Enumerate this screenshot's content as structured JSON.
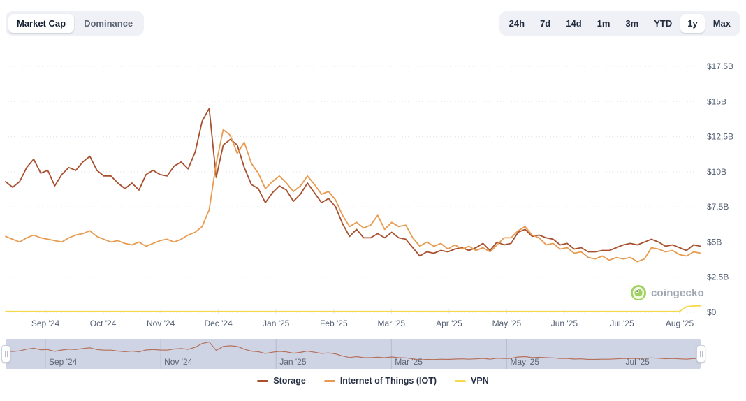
{
  "header": {
    "metric_tabs": [
      {
        "label": "Market Cap",
        "active": true
      },
      {
        "label": "Dominance",
        "active": false
      }
    ],
    "range_tabs": [
      {
        "label": "24h",
        "active": false
      },
      {
        "label": "7d",
        "active": false
      },
      {
        "label": "14d",
        "active": false
      },
      {
        "label": "1m",
        "active": false
      },
      {
        "label": "3m",
        "active": false
      },
      {
        "label": "YTD",
        "active": false
      },
      {
        "label": "1y",
        "active": true
      },
      {
        "label": "Max",
        "active": false
      }
    ]
  },
  "watermark": {
    "text": "coingecko",
    "icon": "gecko-logo",
    "icon_color": "#9ed160"
  },
  "navigator": {
    "labels": [
      "Sep '24",
      "Nov '24",
      "Jan '25",
      "Mar '25",
      "May '25",
      "Jul '25"
    ],
    "series_shown": "Storage",
    "line_color": "#b5705a",
    "background": "#ced4e4"
  },
  "legend": {
    "items": [
      {
        "label": "Storage",
        "color": "#a84f2d"
      },
      {
        "label": "Internet of Things (IOT)",
        "color": "#e89a4f"
      },
      {
        "label": "VPN",
        "color": "#f6d84b"
      }
    ]
  },
  "chart_data": {
    "type": "line",
    "title": "Market Cap",
    "unit": "USD billions",
    "sampling": "100 evenly spaced points across the 1y range (Aug 2024 - Aug 2025)",
    "grid": "horizontal-dotted",
    "legend_position": "bottom",
    "x_axis": {
      "tick_labels": [
        "Sep '24",
        "Oct '24",
        "Nov '24",
        "Dec '24",
        "Jan '25",
        "Feb '25",
        "Mar '25",
        "Apr '25",
        "May '25",
        "Jun '25",
        "Jul '25",
        "Aug '25"
      ]
    },
    "y_axis": {
      "ylim": [
        0,
        17.5
      ],
      "tick_values": [
        17.5,
        15,
        12.5,
        10,
        7.5,
        5,
        2.5,
        0
      ],
      "tick_labels": [
        "$17.5B",
        "$15B",
        "$12.5B",
        "$10B",
        "$7.5B",
        "$5B",
        "$2.5B",
        "$0"
      ]
    },
    "series": [
      {
        "name": "Storage",
        "color": "#a84f2d",
        "values": [
          9.3,
          8.9,
          9.3,
          10.3,
          10.9,
          9.9,
          10.1,
          9.0,
          9.8,
          10.3,
          10.1,
          10.7,
          11.1,
          10.1,
          9.7,
          9.7,
          9.2,
          8.8,
          9.2,
          8.7,
          9.8,
          10.1,
          9.8,
          9.7,
          10.4,
          10.7,
          10.2,
          11.4,
          13.6,
          14.5,
          9.6,
          11.9,
          12.3,
          11.9,
          10.3,
          9.1,
          8.8,
          7.8,
          8.5,
          9.0,
          8.7,
          7.9,
          8.4,
          9.2,
          8.5,
          7.8,
          8.1,
          7.5,
          6.3,
          5.4,
          5.9,
          5.3,
          5.3,
          5.6,
          5.3,
          5.7,
          5.3,
          5.2,
          4.6,
          4.0,
          4.3,
          4.2,
          4.4,
          4.3,
          4.5,
          4.6,
          4.4,
          4.6,
          4.9,
          4.4,
          5.0,
          4.8,
          4.9,
          5.7,
          5.9,
          5.4,
          5.5,
          5.3,
          5.2,
          4.8,
          4.9,
          4.5,
          4.6,
          4.3,
          4.3,
          4.4,
          4.4,
          4.6,
          4.8,
          4.9,
          4.8,
          5.0,
          5.2,
          5.0,
          4.7,
          4.8,
          4.6,
          4.4,
          4.8,
          4.7
        ]
      },
      {
        "name": "Internet of Things (IOT)",
        "color": "#e89a4f",
        "values": [
          5.4,
          5.2,
          5.0,
          5.3,
          5.5,
          5.3,
          5.2,
          5.1,
          5.0,
          5.3,
          5.5,
          5.6,
          5.8,
          5.4,
          5.2,
          5.0,
          5.1,
          4.9,
          4.8,
          5.0,
          4.7,
          4.9,
          5.1,
          5.2,
          5.0,
          5.2,
          5.5,
          5.7,
          6.1,
          7.3,
          10.6,
          13.0,
          12.6,
          11.3,
          12.1,
          10.6,
          9.9,
          8.8,
          9.3,
          9.7,
          9.2,
          8.6,
          9.0,
          9.7,
          9.1,
          8.4,
          8.6,
          8.0,
          6.9,
          6.1,
          6.4,
          6.0,
          6.2,
          6.9,
          5.9,
          6.4,
          6.1,
          6.2,
          5.3,
          4.7,
          5.0,
          4.7,
          4.9,
          4.5,
          4.8,
          4.5,
          4.7,
          4.4,
          4.6,
          4.3,
          4.8,
          5.3,
          5.3,
          5.8,
          6.1,
          5.5,
          5.3,
          4.8,
          4.9,
          4.5,
          4.6,
          4.2,
          4.3,
          3.9,
          3.8,
          4.0,
          3.7,
          3.9,
          3.8,
          3.9,
          3.6,
          3.8,
          4.6,
          4.5,
          4.3,
          4.4,
          4.1,
          4.0,
          4.3,
          4.2
        ]
      },
      {
        "name": "VPN",
        "color": "#f6d84b",
        "values": [
          0.06,
          0.06,
          0.06,
          0.06,
          0.06,
          0.06,
          0.06,
          0.06,
          0.06,
          0.06,
          0.06,
          0.06,
          0.06,
          0.06,
          0.06,
          0.06,
          0.06,
          0.06,
          0.06,
          0.06,
          0.06,
          0.06,
          0.06,
          0.06,
          0.06,
          0.06,
          0.06,
          0.06,
          0.06,
          0.06,
          0.06,
          0.06,
          0.06,
          0.06,
          0.06,
          0.06,
          0.06,
          0.06,
          0.06,
          0.06,
          0.06,
          0.06,
          0.06,
          0.06,
          0.06,
          0.06,
          0.06,
          0.06,
          0.06,
          0.06,
          0.06,
          0.06,
          0.06,
          0.06,
          0.06,
          0.06,
          0.06,
          0.06,
          0.06,
          0.06,
          0.06,
          0.06,
          0.06,
          0.06,
          0.06,
          0.06,
          0.06,
          0.06,
          0.06,
          0.06,
          0.06,
          0.06,
          0.06,
          0.06,
          0.06,
          0.06,
          0.06,
          0.06,
          0.06,
          0.06,
          0.06,
          0.06,
          0.06,
          0.06,
          0.06,
          0.06,
          0.06,
          0.06,
          0.06,
          0.06,
          0.06,
          0.06,
          0.06,
          0.06,
          0.06,
          0.06,
          0.06,
          0.4,
          0.45,
          0.45
        ]
      }
    ]
  }
}
